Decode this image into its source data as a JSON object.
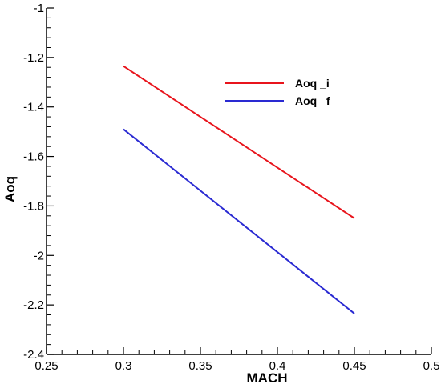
{
  "chart_data": {
    "type": "line",
    "xlabel": "MACH",
    "ylabel": "Aoq",
    "xlim": [
      0.25,
      0.5
    ],
    "ylim": [
      -2.4,
      -1.0
    ],
    "x_ticks": [
      0.25,
      0.3,
      0.35,
      0.4,
      0.45,
      0.5
    ],
    "x_tick_labels": [
      "0.25",
      "0.3",
      "0.35",
      "0.4",
      "0.45",
      "0.5"
    ],
    "y_ticks": [
      -1.0,
      -1.2,
      -1.4,
      -1.6,
      -1.8,
      -2.0,
      -2.2,
      -2.4
    ],
    "y_tick_labels": [
      "-1",
      "-1.2",
      "-1.4",
      "-1.6",
      "-1.8",
      "-2",
      "-2.2",
      "-2.4"
    ],
    "grid": false,
    "legend_position": "top-right",
    "series": [
      {
        "name": "Aoq _i",
        "color": "#e8141c",
        "x": [
          0.3,
          0.45
        ],
        "y": [
          -1.235,
          -1.85
        ]
      },
      {
        "name": "Aoq _f",
        "color": "#2a2ad2",
        "x": [
          0.3,
          0.45
        ],
        "y": [
          -1.49,
          -2.235
        ]
      }
    ]
  }
}
